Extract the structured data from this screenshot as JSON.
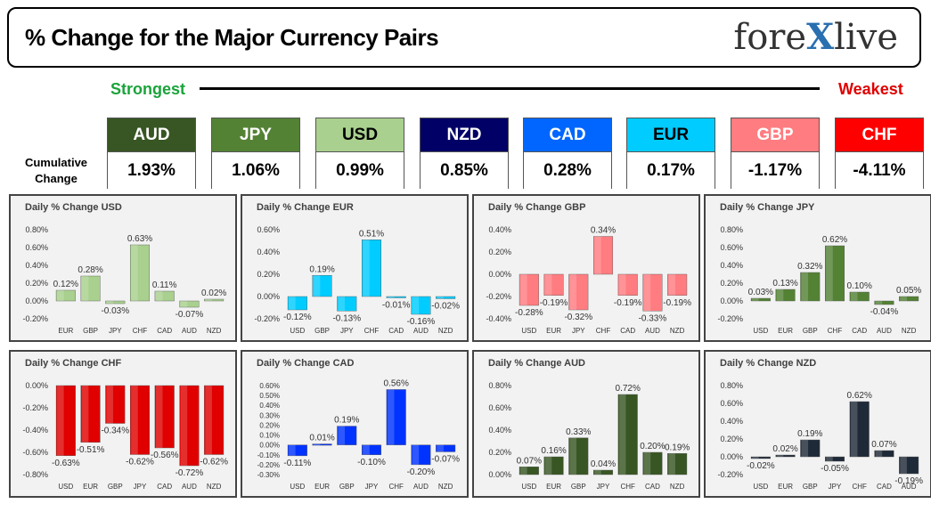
{
  "header": {
    "title": "% Change for the Major Currency Pairs",
    "logo_left": "fore",
    "logo_x": "X",
    "logo_right": "live"
  },
  "scale": {
    "strongest": "Strongest",
    "weakest": "Weakest"
  },
  "cumulative": {
    "label_line1": "Cumulative",
    "label_line2": "Change",
    "currencies": [
      {
        "name": "AUD",
        "value": "1.93%",
        "bg": "#375623",
        "fg": "#ffffff"
      },
      {
        "name": "JPY",
        "value": "1.06%",
        "bg": "#548235",
        "fg": "#ffffff"
      },
      {
        "name": "USD",
        "value": "0.99%",
        "bg": "#a9d08e",
        "fg": "#000000"
      },
      {
        "name": "NZD",
        "value": "0.85%",
        "bg": "#000066",
        "fg": "#ffffff"
      },
      {
        "name": "CAD",
        "value": "0.28%",
        "bg": "#0066ff",
        "fg": "#ffffff"
      },
      {
        "name": "EUR",
        "value": "0.17%",
        "bg": "#00ccff",
        "fg": "#000000"
      },
      {
        "name": "GBP",
        "value": "-1.17%",
        "bg": "#ff7c80",
        "fg": "#ffffff"
      },
      {
        "name": "CHF",
        "value": "-4.11%",
        "bg": "#ff0000",
        "fg": "#ffffff"
      }
    ]
  },
  "chart_data": [
    {
      "type": "bar",
      "title": "Daily % Change USD",
      "categories": [
        "EUR",
        "GBP",
        "JPY",
        "CHF",
        "CAD",
        "AUD",
        "NZD"
      ],
      "values": [
        0.12,
        0.28,
        -0.03,
        0.63,
        0.11,
        -0.07,
        0.02
      ],
      "labels": [
        "0.12%",
        "0.28%",
        "-0.03%",
        "0.63%",
        "0.11%",
        "-0.07%",
        "0.02%"
      ],
      "ylim": [
        -0.2,
        0.8
      ],
      "ticks": [
        0.8,
        0.6,
        0.4,
        0.2,
        0.0,
        -0.2
      ],
      "tick_labels": [
        "0.80%",
        "0.60%",
        "0.40%",
        "0.20%",
        "0.00%",
        "-0.20%"
      ],
      "color": "#a9d08e"
    },
    {
      "type": "bar",
      "title": "Daily % Change EUR",
      "categories": [
        "USD",
        "GBP",
        "JPY",
        "CHF",
        "CAD",
        "AUD",
        "NZD"
      ],
      "values": [
        -0.12,
        0.19,
        -0.13,
        0.51,
        -0.01,
        -0.16,
        -0.02
      ],
      "labels": [
        "-0.12%",
        "0.19%",
        "-0.13%",
        "0.51%",
        "-0.01%",
        "-0.16%",
        "-0.02%"
      ],
      "ylim": [
        -0.2,
        0.6
      ],
      "ticks": [
        0.6,
        0.4,
        0.2,
        0.0,
        -0.2
      ],
      "tick_labels": [
        "0.60%",
        "0.40%",
        "0.20%",
        "0.00%",
        "-0.20%"
      ],
      "color": "#00ccff"
    },
    {
      "type": "bar",
      "title": "Daily % Change GBP",
      "categories": [
        "USD",
        "EUR",
        "JPY",
        "CHF",
        "CAD",
        "AUD",
        "NZD"
      ],
      "values": [
        -0.28,
        -0.19,
        -0.32,
        0.34,
        -0.19,
        -0.33,
        -0.19
      ],
      "labels": [
        "-0.28%",
        "-0.19%",
        "-0.32%",
        "0.34%",
        "-0.19%",
        "-0.33%",
        "-0.19%"
      ],
      "ylim": [
        -0.4,
        0.4
      ],
      "ticks": [
        0.4,
        0.2,
        0.0,
        -0.2,
        -0.4
      ],
      "tick_labels": [
        "0.40%",
        "0.20%",
        "0.00%",
        "-0.20%",
        "-0.40%"
      ],
      "color": "#ff7c80"
    },
    {
      "type": "bar",
      "title": "Daily % Change JPY",
      "categories": [
        "USD",
        "EUR",
        "GBP",
        "CHF",
        "CAD",
        "AUD",
        "NZD"
      ],
      "values": [
        0.03,
        0.13,
        0.32,
        0.62,
        0.1,
        -0.04,
        0.05
      ],
      "labels": [
        "0.03%",
        "0.13%",
        "0.32%",
        "0.62%",
        "0.10%",
        "-0.04%",
        "0.05%"
      ],
      "ylim": [
        -0.2,
        0.8
      ],
      "ticks": [
        0.8,
        0.6,
        0.4,
        0.2,
        0.0,
        -0.2
      ],
      "tick_labels": [
        "0.80%",
        "0.60%",
        "0.40%",
        "0.20%",
        "0.00%",
        "-0.20%"
      ],
      "color": "#548235"
    },
    {
      "type": "bar",
      "title": "Daily % Change CHF",
      "categories": [
        "USD",
        "EUR",
        "GBP",
        "JPY",
        "CAD",
        "AUD",
        "NZD"
      ],
      "values": [
        -0.63,
        -0.51,
        -0.34,
        -0.62,
        -0.56,
        -0.72,
        -0.62
      ],
      "labels": [
        "-0.63%",
        "-0.51%",
        "-0.34%",
        "-0.62%",
        "-0.56%",
        "-0.72%",
        "-0.62%"
      ],
      "ylim": [
        -0.8,
        0.0
      ],
      "ticks": [
        0.0,
        -0.2,
        -0.4,
        -0.6,
        -0.8
      ],
      "tick_labels": [
        "0.00%",
        "-0.20%",
        "-0.40%",
        "-0.60%",
        "-0.80%"
      ],
      "color": "#e00000"
    },
    {
      "type": "bar",
      "title": "Daily % Change CAD",
      "categories": [
        "USD",
        "EUR",
        "GBP",
        "JPY",
        "CHF",
        "AUD",
        "NZD"
      ],
      "values": [
        -0.11,
        0.01,
        0.19,
        -0.1,
        0.56,
        -0.2,
        -0.07
      ],
      "labels": [
        "-0.11%",
        "0.01%",
        "0.19%",
        "-0.10%",
        "0.56%",
        "-0.20%",
        "-0.07%"
      ],
      "ylim": [
        -0.3,
        0.6
      ],
      "ticks": [
        0.6,
        0.5,
        0.4,
        0.3,
        0.2,
        0.1,
        0.0,
        -0.1,
        -0.2,
        -0.3
      ],
      "tick_labels": [
        "0.60%",
        "0.50%",
        "0.40%",
        "0.30%",
        "0.20%",
        "0.10%",
        "0.00%",
        "-0.10%",
        "-0.20%",
        "-0.30%"
      ],
      "color": "#0033ff"
    },
    {
      "type": "bar",
      "title": "Daily % Change AUD",
      "categories": [
        "USD",
        "EUR",
        "GBP",
        "JPY",
        "CHF",
        "CAD",
        "NZD"
      ],
      "values": [
        0.07,
        0.16,
        0.33,
        0.04,
        0.72,
        0.2,
        0.19
      ],
      "labels": [
        "0.07%",
        "0.16%",
        "0.33%",
        "0.04%",
        "0.72%",
        "0.20%",
        "0.19%"
      ],
      "ylim": [
        0.0,
        0.8
      ],
      "ticks": [
        0.8,
        0.6,
        0.4,
        0.2,
        0.0
      ],
      "tick_labels": [
        "0.80%",
        "0.60%",
        "0.40%",
        "0.20%",
        "0.00%"
      ],
      "color": "#375623"
    },
    {
      "type": "bar",
      "title": "Daily % Change NZD",
      "categories": [
        "USD",
        "EUR",
        "GBP",
        "JPY",
        "CHF",
        "CAD",
        "AUD"
      ],
      "values": [
        -0.02,
        0.02,
        0.19,
        -0.05,
        0.62,
        0.07,
        -0.19
      ],
      "labels": [
        "-0.02%",
        "0.02%",
        "0.19%",
        "-0.05%",
        "0.62%",
        "0.07%",
        "-0.19%"
      ],
      "ylim": [
        -0.2,
        0.8
      ],
      "ticks": [
        0.8,
        0.6,
        0.4,
        0.2,
        0.0,
        -0.2
      ],
      "tick_labels": [
        "0.80%",
        "0.60%",
        "0.40%",
        "0.20%",
        "0.00%",
        "-0.20%"
      ],
      "color": "#1f2a38"
    }
  ]
}
